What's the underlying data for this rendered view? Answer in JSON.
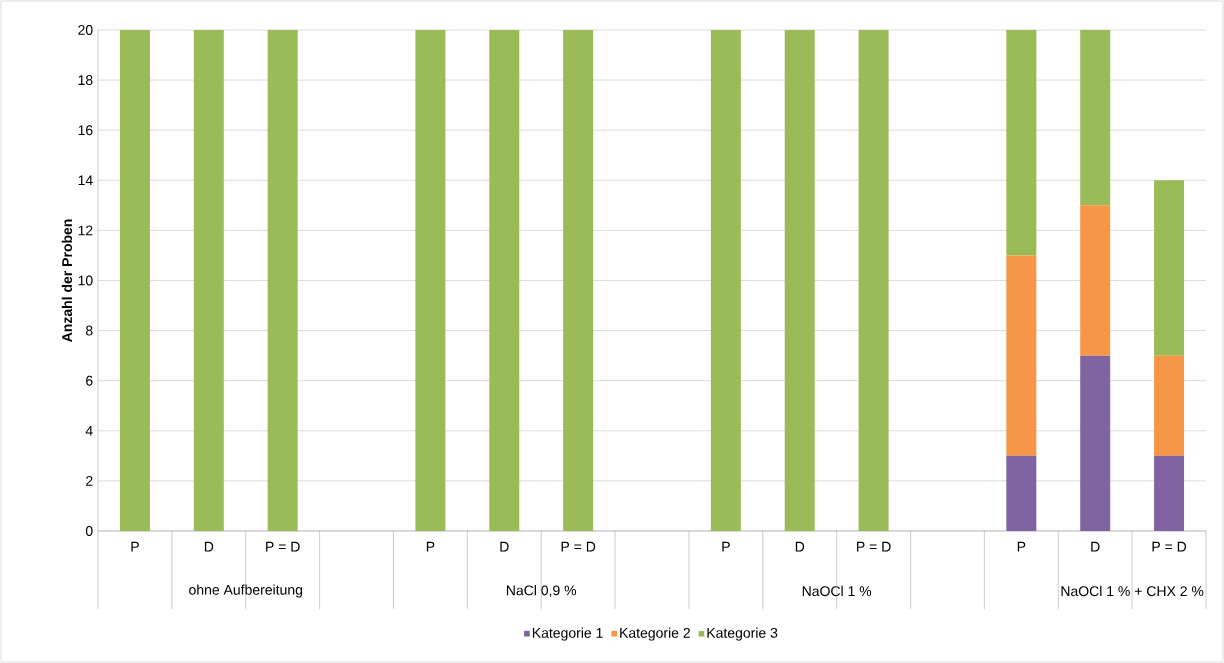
{
  "chart_data": {
    "type": "bar",
    "stacked": true,
    "ylabel": "Anzahl der Proben",
    "categories": [
      "P",
      "D",
      "P = D",
      null,
      "P",
      "D",
      "P = D",
      null,
      "P",
      "D",
      "P = D",
      null,
      "P",
      "D",
      "P = D"
    ],
    "series": [
      {
        "name": "Kategorie 1",
        "color": "#8064a2",
        "values": [
          0,
          0,
          0,
          null,
          0,
          0,
          0,
          null,
          0,
          0,
          0,
          null,
          3,
          7,
          3
        ]
      },
      {
        "name": "Kategorie 2",
        "color": "#f79646",
        "values": [
          0,
          0,
          0,
          null,
          0,
          0,
          0,
          null,
          0,
          0,
          0,
          null,
          8,
          6,
          4
        ]
      },
      {
        "name": "Kategorie 3",
        "color": "#9bbb59",
        "values": [
          20,
          20,
          20,
          null,
          20,
          20,
          20,
          null,
          20,
          20,
          20,
          null,
          9,
          7,
          7
        ]
      }
    ],
    "annotations": [
      "ohne Aufbereitung",
      "NaCl 0,9 %",
      "NaOCl 1 %",
      "NaOCl 1 % + CHX 2 %"
    ],
    "ylim": [
      0,
      20
    ],
    "yticks": [
      0,
      2,
      4,
      6,
      8,
      10,
      12,
      14,
      16,
      18,
      20
    ],
    "grid": "y",
    "legend": "bottom"
  }
}
